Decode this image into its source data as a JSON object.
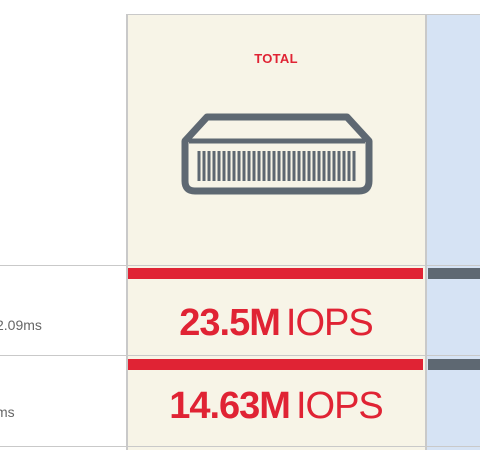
{
  "header": {
    "total_label": "TOTAL"
  },
  "rows": [
    {
      "label_fragment": "2.09ms",
      "value": "23.5M",
      "unit": "IOPS"
    },
    {
      "label_fragment": "ms",
      "value": "14.63M",
      "unit": "IOPS"
    }
  ],
  "icons": {
    "device": "storage-device-icon"
  },
  "colors": {
    "accent_red": "#e02334",
    "total_bg": "#f7f4e7",
    "next_bg": "#d6e3f4",
    "gray_bar": "#5e6872"
  }
}
